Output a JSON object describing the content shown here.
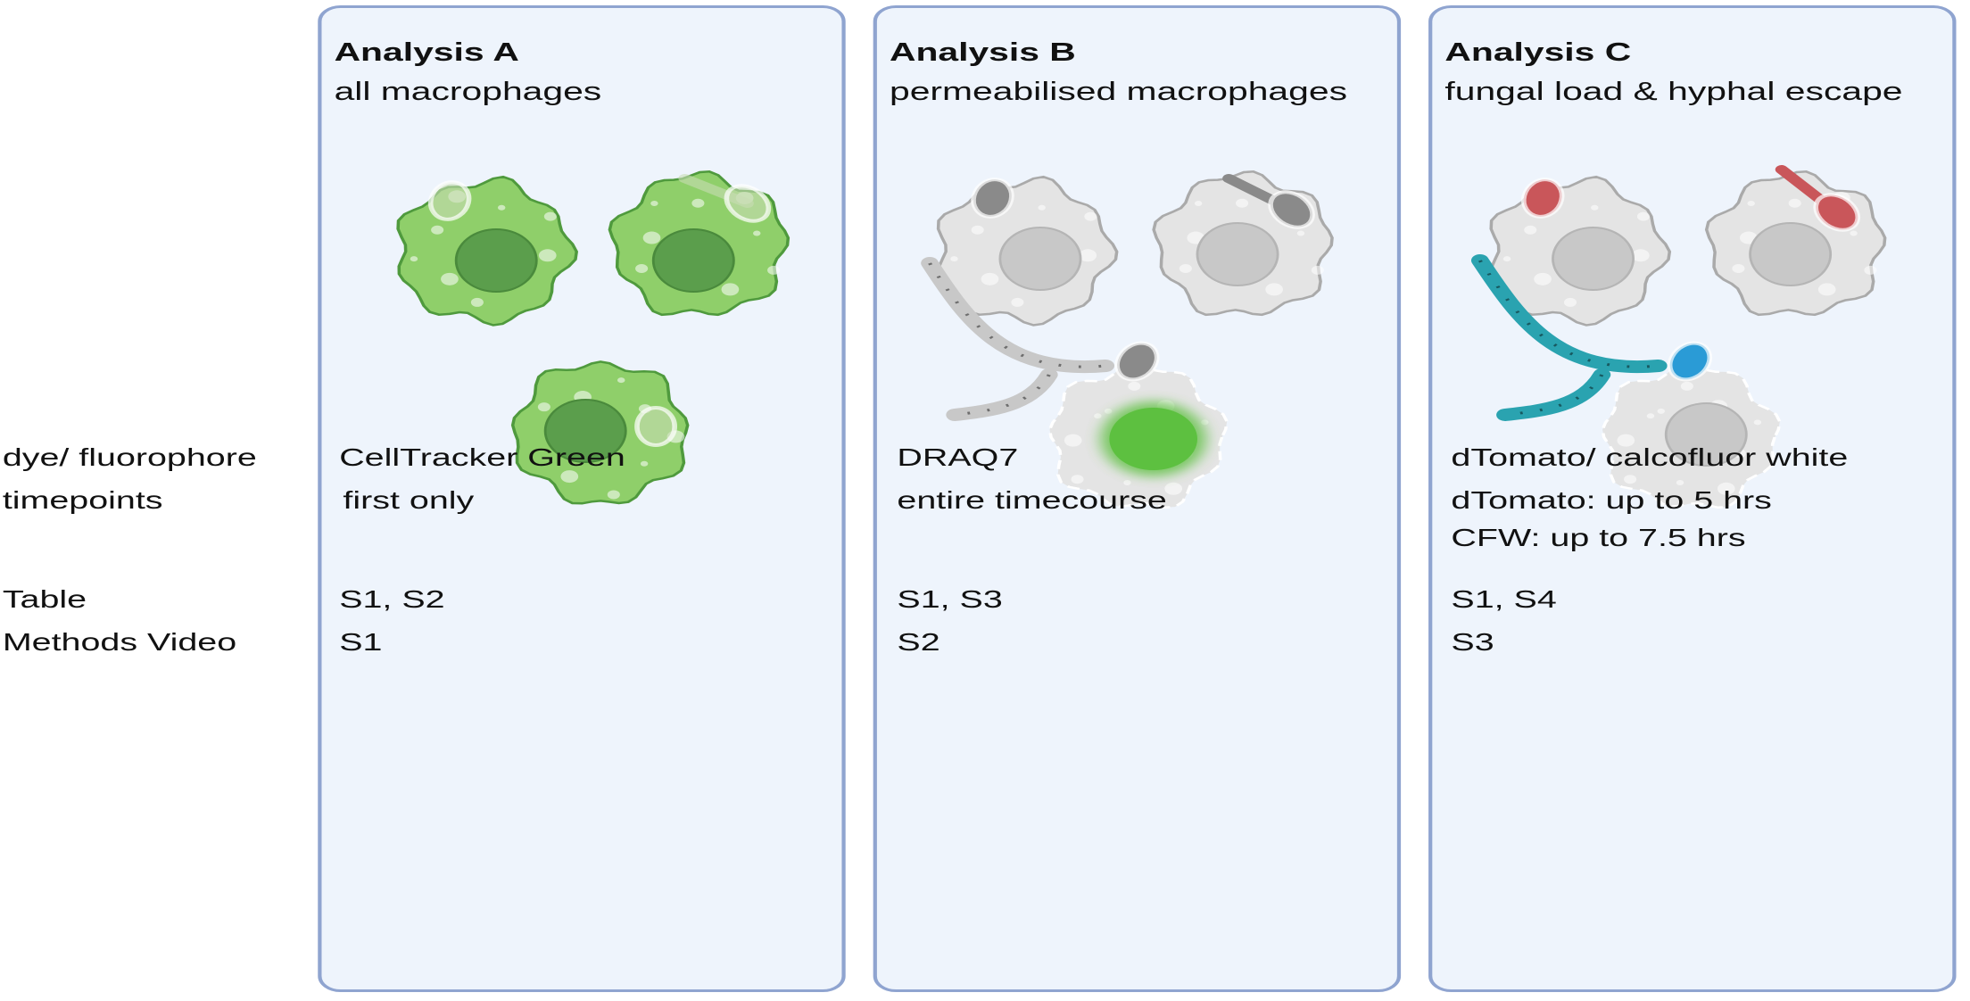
{
  "row_labels": {
    "dye": "dye/ fluorophore",
    "timepoints": "timepoints",
    "table": "Table",
    "video": "Methods Video"
  },
  "panels": [
    {
      "title": "Analysis A",
      "subtitle": "all macrophages",
      "dye": "CellTracker Green",
      "timepoints": [
        "first only"
      ],
      "table": "S1, S2",
      "video": "S1"
    },
    {
      "title": "Analysis B",
      "subtitle": "permeabilised macrophages",
      "dye": "DRAQ7",
      "timepoints": [
        "entire timecourse"
      ],
      "table": "S1, S3",
      "video": "S2"
    },
    {
      "title": "Analysis C",
      "subtitle": "fungal load & hyphal escape",
      "dye": "dTomato/ calcofluor white",
      "timepoints": [
        "dTomato: up to 5 hrs",
        "CFW: up to 7.5 hrs"
      ],
      "table": "S1, S4",
      "video": "S3"
    }
  ],
  "colors": {
    "panel_border": "#8fa4d0",
    "panel_fill": "#eef4fc",
    "cell_green": "#8fcf6a",
    "nucleus_green": "#5b9e4c",
    "cell_grey": "#e4e4e4",
    "nucleus_grey": "#c8c8c8",
    "draq7_green": "#5dc040",
    "dtomato_red": "#c9565a",
    "cfw_blue": "#2a9bd6",
    "hypha_teal": "#2aa3b0"
  }
}
